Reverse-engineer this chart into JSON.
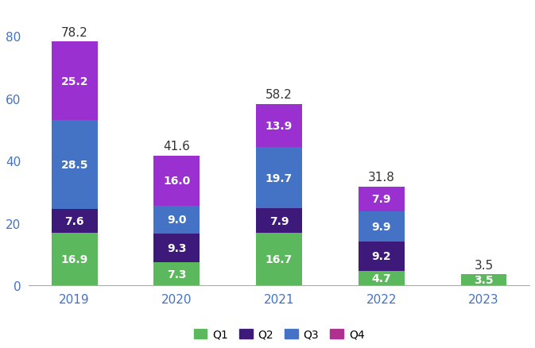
{
  "years": [
    "2019",
    "2020",
    "2021",
    "2022",
    "2023"
  ],
  "Q1": [
    16.9,
    7.3,
    16.7,
    4.7,
    3.5
  ],
  "Q2": [
    7.6,
    9.3,
    7.9,
    9.2,
    0.0
  ],
  "Q3": [
    28.5,
    9.0,
    19.7,
    9.9,
    0.0
  ],
  "Q4": [
    25.2,
    16.0,
    13.9,
    7.9,
    0.0
  ],
  "totals": [
    78.2,
    41.6,
    58.2,
    31.8,
    3.5
  ],
  "colors": {
    "Q1": "#5cb85c",
    "Q2": "#3d1a7a",
    "Q3": "#4472c4",
    "Q4": "#9b30d0"
  },
  "bar_width": 0.45,
  "ylim": [
    0,
    90
  ],
  "yticks": [
    0,
    20,
    40,
    60,
    80
  ],
  "background_color": "#ffffff",
  "label_color": "#ffffff",
  "total_label_color": "#333333",
  "label_fontsize": 10,
  "total_fontsize": 11,
  "tick_fontsize": 11,
  "tick_color": "#4472c4",
  "legend_fontsize": 10,
  "legend_q4_color": "#b03090"
}
